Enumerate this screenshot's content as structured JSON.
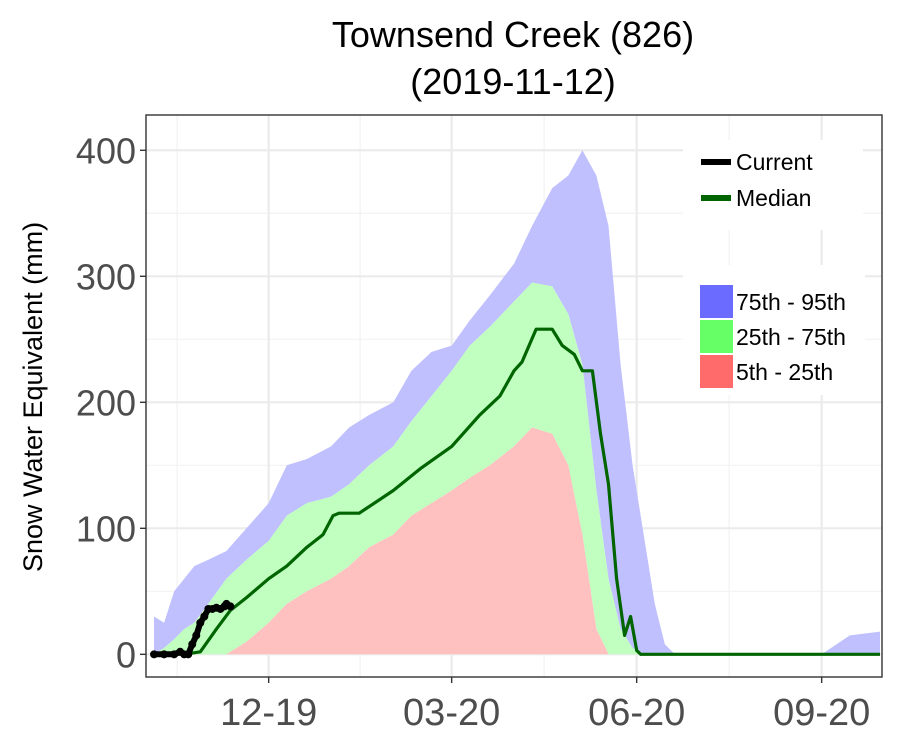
{
  "chart_data": {
    "type": "area",
    "title_line1": "Townsend Creek (826)",
    "title_line2": "(2019-11-12)",
    "ylabel": "Snow Water Equivalent (mm)",
    "xlabel": "",
    "ylim": [
      -18,
      428
    ],
    "xlim": [
      "2019-10-01",
      "2020-10-01"
    ],
    "yticks": [
      0,
      100,
      200,
      300,
      400
    ],
    "ytick_labels": [
      "0",
      "100",
      "200",
      "300",
      "400"
    ],
    "xticks": [
      "2019-12-01",
      "2020-03-01",
      "2020-06-01",
      "2020-09-01"
    ],
    "xtick_labels": [
      "12-19",
      "03-20",
      "06-20",
      "09-20"
    ],
    "grid": true,
    "legend_placement": "top-right",
    "legend_lines": [
      {
        "label": "Current",
        "color": "#000000"
      },
      {
        "label": "Median",
        "color": "#006400"
      }
    ],
    "legend_bands": [
      {
        "label": "75th - 95th",
        "color": "#6b6bff"
      },
      {
        "label": "25th - 75th",
        "color": "#66ff66"
      },
      {
        "label": "5th - 25th",
        "color": "#ff6b6b"
      }
    ],
    "band_colors": {
      "p75_95": "#c0c0ff",
      "p25_75": "#c0ffc0",
      "p5_25": "#ffc0c0"
    },
    "x": [
      "2019-10-05",
      "2019-10-10",
      "2019-10-15",
      "2019-10-20",
      "2019-10-25",
      "2019-11-01",
      "2019-11-10",
      "2019-11-20",
      "2019-12-01",
      "2019-12-10",
      "2019-12-20",
      "2020-01-01",
      "2020-01-10",
      "2020-01-20",
      "2020-02-01",
      "2020-02-10",
      "2020-02-20",
      "2020-03-01",
      "2020-03-10",
      "2020-03-20",
      "2020-04-01",
      "2020-04-10",
      "2020-04-20",
      "2020-04-28",
      "2020-05-05",
      "2020-05-12",
      "2020-05-18",
      "2020-05-24",
      "2020-05-30",
      "2020-06-05",
      "2020-06-10",
      "2020-06-15",
      "2020-06-20",
      "2020-06-25",
      "2020-07-01",
      "2020-07-10",
      "2020-08-01",
      "2020-09-01",
      "2020-09-15",
      "2020-09-30"
    ],
    "series": [
      {
        "name": "95th",
        "values": [
          30,
          25,
          50,
          60,
          70,
          75,
          82,
          100,
          120,
          150,
          155,
          165,
          180,
          190,
          200,
          225,
          240,
          245,
          265,
          285,
          310,
          340,
          370,
          380,
          400,
          380,
          340,
          230,
          150,
          90,
          40,
          8,
          0,
          0,
          0,
          0,
          0,
          0,
          15,
          18
        ]
      },
      {
        "name": "75th",
        "values": [
          0,
          5,
          12,
          20,
          25,
          40,
          60,
          75,
          90,
          110,
          120,
          125,
          135,
          150,
          165,
          185,
          205,
          225,
          245,
          260,
          280,
          295,
          292,
          270,
          230,
          130,
          60,
          20,
          5,
          0,
          0,
          0,
          0,
          0,
          0,
          0,
          0,
          0,
          0,
          0
        ]
      },
      {
        "name": "25th",
        "values": [
          0,
          0,
          0,
          0,
          0,
          0,
          0,
          10,
          25,
          40,
          50,
          60,
          70,
          85,
          95,
          110,
          120,
          130,
          140,
          150,
          165,
          180,
          175,
          150,
          95,
          20,
          0,
          0,
          0,
          0,
          0,
          0,
          0,
          0,
          0,
          0,
          0,
          0,
          0,
          0
        ]
      },
      {
        "name": "5th",
        "values": [
          0,
          0,
          0,
          0,
          0,
          0,
          0,
          0,
          0,
          0,
          0,
          0,
          0,
          0,
          0,
          0,
          0,
          0,
          0,
          0,
          0,
          0,
          0,
          0,
          0,
          0,
          0,
          0,
          0,
          0,
          0,
          0,
          0,
          0,
          0,
          0,
          0,
          0,
          0,
          0
        ]
      }
    ],
    "median": {
      "name": "Median",
      "x": [
        "2019-10-05",
        "2019-10-20",
        "2019-10-28",
        "2019-11-05",
        "2019-11-12",
        "2019-11-20",
        "2019-12-01",
        "2019-12-10",
        "2019-12-20",
        "2019-12-28",
        "2020-01-02",
        "2020-01-05",
        "2020-01-15",
        "2020-02-01",
        "2020-02-15",
        "2020-03-01",
        "2020-03-15",
        "2020-03-25",
        "2020-04-01",
        "2020-04-05",
        "2020-04-12",
        "2020-04-20",
        "2020-04-25",
        "2020-05-01",
        "2020-05-05",
        "2020-05-10",
        "2020-05-14",
        "2020-05-18",
        "2020-05-22",
        "2020-05-26",
        "2020-05-29",
        "2020-06-01",
        "2020-06-03",
        "2020-06-05",
        "2020-06-07",
        "2020-06-10",
        "2020-07-01",
        "2020-08-01",
        "2020-09-01",
        "2020-09-30"
      ],
      "values": [
        0,
        0,
        2,
        20,
        35,
        45,
        60,
        70,
        85,
        95,
        110,
        112,
        112,
        130,
        148,
        165,
        190,
        205,
        225,
        232,
        258,
        258,
        245,
        238,
        225,
        225,
        175,
        135,
        60,
        15,
        30,
        3,
        0,
        0,
        0,
        0,
        0,
        0,
        0,
        0
      ]
    },
    "current": {
      "name": "Current",
      "x": [
        "2019-10-05",
        "2019-10-10",
        "2019-10-15",
        "2019-10-18",
        "2019-10-20",
        "2019-10-22",
        "2019-10-24",
        "2019-10-26",
        "2019-10-28",
        "2019-10-30",
        "2019-11-01",
        "2019-11-03",
        "2019-11-05",
        "2019-11-07",
        "2019-11-09",
        "2019-11-10",
        "2019-11-12"
      ],
      "values": [
        0,
        0,
        0,
        2,
        0,
        0,
        8,
        15,
        25,
        30,
        36,
        36,
        37,
        36,
        38,
        40,
        38
      ]
    }
  }
}
